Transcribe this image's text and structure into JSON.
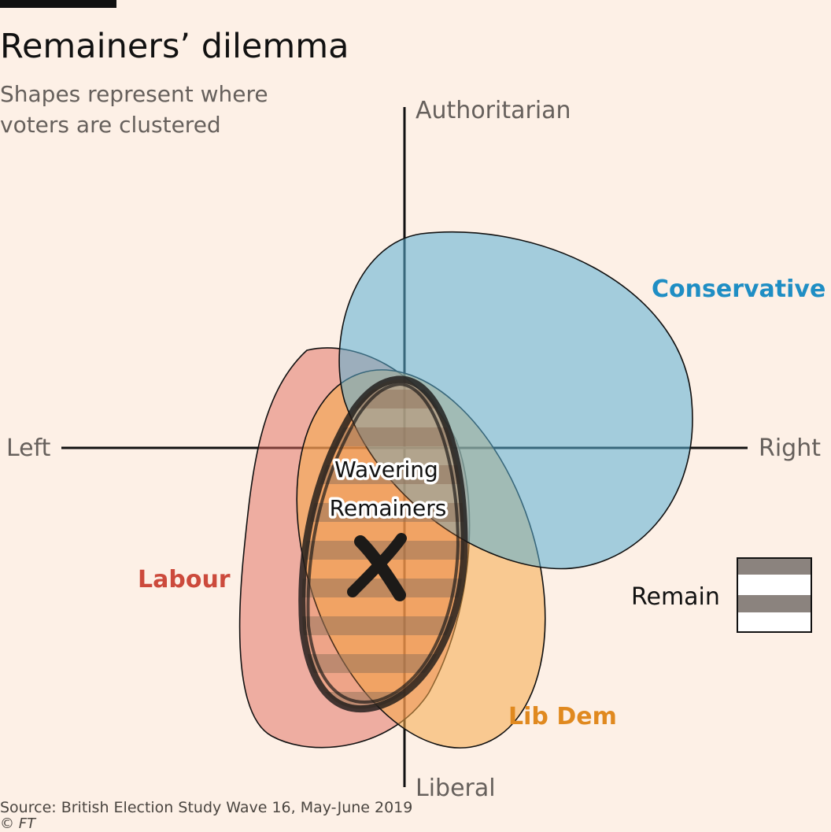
{
  "title": "Remainers’ dilemma",
  "subtitle": "Shapes represent where voters are clustered",
  "axes": {
    "top": "Authoritarian",
    "bottom": "Liberal",
    "left": "Left",
    "right": "Right"
  },
  "parties": [
    {
      "name": "Conservative",
      "color": "#1f8ec4"
    },
    {
      "name": "Labour",
      "color": "#cc4a3c"
    },
    {
      "name": "Lib Dem",
      "color": "#e0891f"
    }
  ],
  "highlight_label_line1": "Wavering",
  "highlight_label_line2": "Remainers",
  "legend": {
    "label": "Remain"
  },
  "source": "Source: British Election Study Wave 16, May-June 2019",
  "credit": "© FT",
  "colors": {
    "background": "#fdf0e6",
    "conservative_fill": "#a2cde0",
    "labour_fill": "#eaa99e",
    "libdem_fill": "#f8cc8c",
    "remain_stripe": "#6e6660"
  }
}
